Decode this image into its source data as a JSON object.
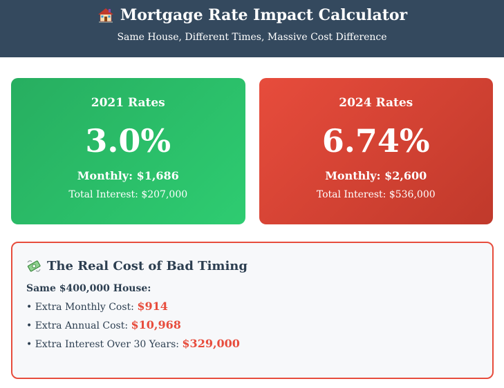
{
  "header": {
    "title": "Mortgage Rate Impact Calculator",
    "subtitle": "Same House, Different Times, Massive Cost Difference",
    "icon": "house-icon"
  },
  "cards": [
    {
      "year_label": "2021 Rates",
      "rate": "3.0%",
      "monthly": "Monthly: $1,686",
      "total_interest": "Total Interest: $207,000",
      "color": "#27ae60"
    },
    {
      "year_label": "2024 Rates",
      "rate": "6.74%",
      "monthly": "Monthly: $2,600",
      "total_interest": "Total Interest: $536,000",
      "color": "#e74c3c"
    }
  ],
  "impact": {
    "icon": "money-with-wings-icon",
    "title": "The Real Cost of Bad Timing",
    "house_label": "Same $400,000 House:",
    "lines": [
      {
        "label": "• Extra Monthly Cost: ",
        "amount": "$914"
      },
      {
        "label": "• Extra Annual Cost: ",
        "amount": "$10,968"
      },
      {
        "label": "• Extra Interest Over 30 Years: ",
        "amount": "$329,000"
      }
    ],
    "accent_color": "#e74c3c"
  }
}
